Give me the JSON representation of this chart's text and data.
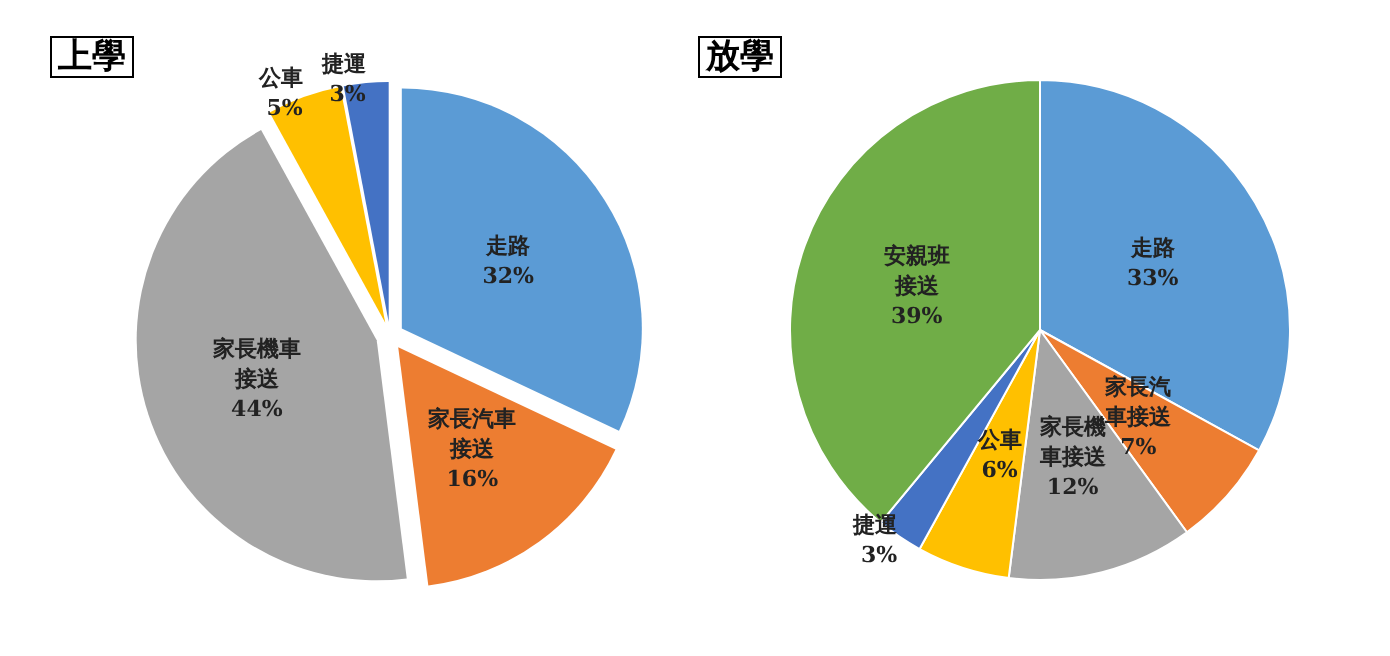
{
  "chart_data": [
    {
      "type": "pie",
      "title": "上學",
      "categories": [
        "走路",
        "家長汽車接送",
        "家長機車接送",
        "公車",
        "捷運"
      ],
      "values": [
        32,
        16,
        44,
        5,
        3
      ],
      "colors": [
        "#5b9bd5",
        "#ed7d31",
        "#a5a5a5",
        "#ffc000",
        "#4472c4"
      ],
      "value_labels": [
        "32%",
        "16%",
        "44%",
        "5%",
        "3%"
      ],
      "legend": false
    },
    {
      "type": "pie",
      "title": "放學",
      "categories": [
        "走路",
        "家長汽車接送",
        "家長機車接送",
        "公車",
        "捷運",
        "安親班接送"
      ],
      "values": [
        33,
        7,
        12,
        6,
        3,
        39
      ],
      "colors": [
        "#5b9bd5",
        "#ed7d31",
        "#a5a5a5",
        "#ffc000",
        "#4472c4",
        "#70ad47"
      ],
      "value_labels": [
        "33%",
        "7%",
        "12%",
        "6%",
        "3%",
        "39%"
      ],
      "legend": false
    }
  ]
}
